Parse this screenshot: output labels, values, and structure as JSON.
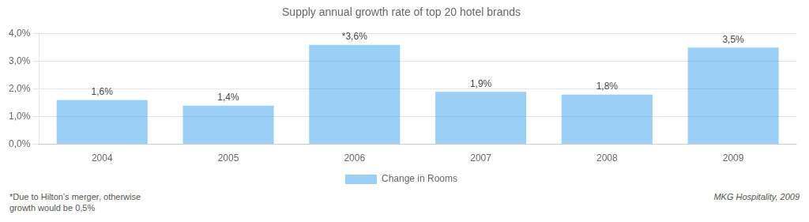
{
  "chart_data": {
    "type": "bar",
    "title": "Supply annual growth rate of top 20 hotel brands",
    "categories": [
      "2004",
      "2005",
      "2006",
      "2007",
      "2008",
      "2009"
    ],
    "series": [
      {
        "name": "Change in Rooms",
        "values": [
          1.6,
          1.4,
          3.6,
          1.9,
          1.8,
          3.5
        ],
        "value_labels": [
          "1,6%",
          "1,4%",
          "*3,6%",
          "1,9%",
          "1,8%",
          "3,5%"
        ]
      }
    ],
    "data_labels": true,
    "ylim": [
      0,
      4.0
    ],
    "yticks": [
      {
        "value": 0.0,
        "label": "0,0%"
      },
      {
        "value": 1.0,
        "label": "1,0%"
      },
      {
        "value": 2.0,
        "label": "2,0%"
      },
      {
        "value": 3.0,
        "label": "3,0%"
      },
      {
        "value": 4.0,
        "label": "4,0%"
      }
    ],
    "grid": true,
    "legend": "bottom",
    "annotations": [
      "*Due to Hilton’s merger, otherwise\ngrowth would be 0,5%",
      "MKG Hospitality, 2009"
    ]
  }
}
